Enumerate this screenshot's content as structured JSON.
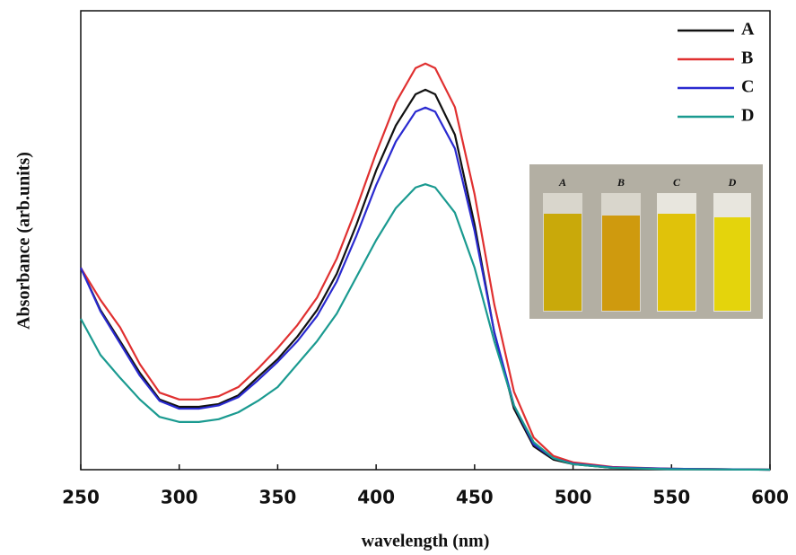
{
  "chart_data": {
    "type": "line",
    "x_label": "wavelength (nm)",
    "y_label": "Absorbance (arb.units)",
    "x": [
      250,
      260,
      270,
      280,
      290,
      300,
      310,
      320,
      330,
      340,
      350,
      360,
      370,
      380,
      390,
      400,
      410,
      420,
      425,
      430,
      440,
      450,
      460,
      470,
      480,
      490,
      500,
      520,
      550,
      600
    ],
    "series": [
      {
        "name": "A",
        "color": "#111111",
        "values": [
          0.44,
          0.348,
          0.28,
          0.211,
          0.153,
          0.137,
          0.137,
          0.143,
          0.162,
          0.202,
          0.241,
          0.29,
          0.348,
          0.427,
          0.534,
          0.652,
          0.75,
          0.818,
          0.828,
          0.818,
          0.73,
          0.534,
          0.299,
          0.133,
          0.051,
          0.022,
          0.012,
          0.004,
          0.002,
          0
        ]
      },
      {
        "name": "B",
        "color": "#e03030",
        "values": [
          0.44,
          0.37,
          0.31,
          0.23,
          0.168,
          0.153,
          0.153,
          0.16,
          0.18,
          0.22,
          0.265,
          0.315,
          0.375,
          0.46,
          0.57,
          0.69,
          0.8,
          0.875,
          0.885,
          0.875,
          0.79,
          0.6,
          0.36,
          0.17,
          0.07,
          0.03,
          0.016,
          0.006,
          0.002,
          0
        ]
      },
      {
        "name": "C",
        "color": "#2a2ad0",
        "values": [
          0.44,
          0.345,
          0.275,
          0.205,
          0.15,
          0.133,
          0.133,
          0.14,
          0.158,
          0.195,
          0.235,
          0.28,
          0.335,
          0.41,
          0.51,
          0.62,
          0.715,
          0.78,
          0.789,
          0.78,
          0.7,
          0.52,
          0.3,
          0.14,
          0.055,
          0.025,
          0.013,
          0.005,
          0.002,
          0
        ]
      },
      {
        "name": "D",
        "color": "#1a9a90",
        "values": [
          0.329,
          0.25,
          0.2,
          0.153,
          0.115,
          0.104,
          0.104,
          0.11,
          0.125,
          0.15,
          0.18,
          0.23,
          0.28,
          0.34,
          0.42,
          0.5,
          0.57,
          0.615,
          0.622,
          0.615,
          0.56,
          0.44,
          0.28,
          0.14,
          0.06,
          0.025,
          0.012,
          0.004,
          0.001,
          0
        ]
      }
    ],
    "xlim": [
      250,
      600
    ],
    "xticks": [
      250,
      300,
      350,
      400,
      450,
      500,
      550,
      600
    ],
    "ylim": [
      0,
      1
    ],
    "legend": "upper-right",
    "inset_labels": [
      "A",
      "B",
      "C",
      "D"
    ]
  }
}
